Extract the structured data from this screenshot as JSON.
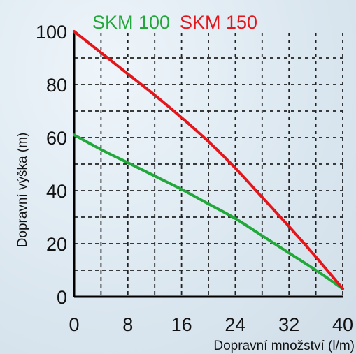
{
  "chart_data": {
    "type": "line",
    "title": "",
    "xlabel": "Dopravní množství (l/m)",
    "ylabel": "Dopravní výška (m)",
    "xlim": [
      0,
      40
    ],
    "ylim": [
      0,
      100
    ],
    "x_ticks": [
      0,
      8,
      16,
      24,
      32,
      40
    ],
    "y_ticks": [
      0,
      20,
      40,
      60,
      80,
      100
    ],
    "grid": true,
    "legend_position": "top",
    "series": [
      {
        "name": "SKM 100",
        "color": "#22a83a",
        "x": [
          0,
          4,
          8,
          12,
          16,
          20,
          24,
          28,
          32,
          36,
          40
        ],
        "y": [
          61,
          55.5,
          50.5,
          45.5,
          40.5,
          35,
          29.5,
          23,
          16.5,
          10,
          3
        ]
      },
      {
        "name": "SKM 150",
        "color": "#e3161c",
        "x": [
          0,
          4,
          8,
          12,
          16,
          20,
          24,
          28,
          32,
          36,
          40
        ],
        "y": [
          100,
          92,
          84,
          76,
          67.5,
          58.5,
          48.5,
          37.5,
          26.5,
          15,
          3
        ]
      }
    ]
  }
}
